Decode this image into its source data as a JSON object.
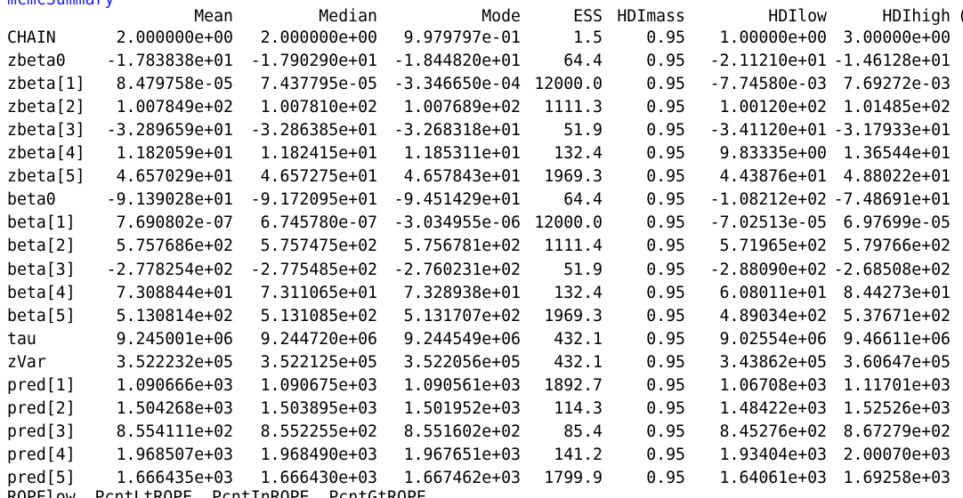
{
  "console": {
    "command_fragment": "mcmcSummary",
    "trailing_fragment": "(",
    "bottom_fragment": "ROPElow  PcntLtROPE  PcntInROPE  PcntGtROPE"
  },
  "table": {
    "columns": [
      "Mean",
      "Median",
      "Mode",
      "ESS",
      "HDImass",
      "HDIlow",
      "HDIhigh"
    ],
    "rows": [
      {
        "name": "CHAIN",
        "cells": [
          "2.000000e+00",
          "2.000000e+00",
          "9.979797e-01",
          "1.5",
          "0.95",
          "1.00000e+00",
          "3.00000e+00"
        ]
      },
      {
        "name": "zbeta0",
        "cells": [
          "-1.783838e+01",
          "-1.790290e+01",
          "-1.844820e+01",
          "64.4",
          "0.95",
          "-2.11210e+01",
          "-1.46128e+01"
        ]
      },
      {
        "name": "zbeta[1]",
        "cells": [
          "8.479758e-05",
          "7.437795e-05",
          "-3.346650e-04",
          "12000.0",
          "0.95",
          "-7.74580e-03",
          "7.69272e-03"
        ]
      },
      {
        "name": "zbeta[2]",
        "cells": [
          "1.007849e+02",
          "1.007810e+02",
          "1.007689e+02",
          "1111.3",
          "0.95",
          "1.00120e+02",
          "1.01485e+02"
        ]
      },
      {
        "name": "zbeta[3]",
        "cells": [
          "-3.289659e+01",
          "-3.286385e+01",
          "-3.268318e+01",
          "51.9",
          "0.95",
          "-3.41120e+01",
          "-3.17933e+01"
        ]
      },
      {
        "name": "zbeta[4]",
        "cells": [
          "1.182059e+01",
          "1.182415e+01",
          "1.185311e+01",
          "132.4",
          "0.95",
          "9.83335e+00",
          "1.36544e+01"
        ]
      },
      {
        "name": "zbeta[5]",
        "cells": [
          "4.657029e+01",
          "4.657275e+01",
          "4.657843e+01",
          "1969.3",
          "0.95",
          "4.43876e+01",
          "4.88022e+01"
        ]
      },
      {
        "name": "beta0",
        "cells": [
          "-9.139028e+01",
          "-9.172095e+01",
          "-9.451429e+01",
          "64.4",
          "0.95",
          "-1.08212e+02",
          "-7.48691e+01"
        ]
      },
      {
        "name": "beta[1]",
        "cells": [
          "7.690802e-07",
          "6.745780e-07",
          "-3.034955e-06",
          "12000.0",
          "0.95",
          "-7.02513e-05",
          "6.97699e-05"
        ]
      },
      {
        "name": "beta[2]",
        "cells": [
          "5.757686e+02",
          "5.757475e+02",
          "5.756781e+02",
          "1111.4",
          "0.95",
          "5.71965e+02",
          "5.79766e+02"
        ]
      },
      {
        "name": "beta[3]",
        "cells": [
          "-2.778254e+02",
          "-2.775485e+02",
          "-2.760231e+02",
          "51.9",
          "0.95",
          "-2.88090e+02",
          "-2.68508e+02"
        ]
      },
      {
        "name": "beta[4]",
        "cells": [
          "7.308844e+01",
          "7.311065e+01",
          "7.328938e+01",
          "132.4",
          "0.95",
          "6.08011e+01",
          "8.44273e+01"
        ]
      },
      {
        "name": "beta[5]",
        "cells": [
          "5.130814e+02",
          "5.131085e+02",
          "5.131707e+02",
          "1969.3",
          "0.95",
          "4.89034e+02",
          "5.37671e+02"
        ]
      },
      {
        "name": "tau",
        "cells": [
          "9.245001e+06",
          "9.244720e+06",
          "9.244549e+06",
          "432.1",
          "0.95",
          "9.02554e+06",
          "9.46611e+06"
        ]
      },
      {
        "name": "zVar",
        "cells": [
          "3.522232e+05",
          "3.522125e+05",
          "3.522056e+05",
          "432.1",
          "0.95",
          "3.43862e+05",
          "3.60647e+05"
        ]
      },
      {
        "name": "pred[1]",
        "cells": [
          "1.090666e+03",
          "1.090675e+03",
          "1.090561e+03",
          "1892.7",
          "0.95",
          "1.06708e+03",
          "1.11701e+03"
        ]
      },
      {
        "name": "pred[2]",
        "cells": [
          "1.504268e+03",
          "1.503895e+03",
          "1.501952e+03",
          "114.3",
          "0.95",
          "1.48422e+03",
          "1.52526e+03"
        ]
      },
      {
        "name": "pred[3]",
        "cells": [
          "8.554111e+02",
          "8.552255e+02",
          "8.551602e+02",
          "85.4",
          "0.95",
          "8.45276e+02",
          "8.67279e+02"
        ]
      },
      {
        "name": "pred[4]",
        "cells": [
          "1.968507e+03",
          "1.968490e+03",
          "1.967651e+03",
          "141.2",
          "0.95",
          "1.93404e+03",
          "2.00070e+03"
        ]
      },
      {
        "name": "pred[5]",
        "cells": [
          "1.666435e+03",
          "1.666430e+03",
          "1.667462e+03",
          "1799.9",
          "0.95",
          "1.64061e+03",
          "1.69258e+03"
        ]
      }
    ]
  }
}
